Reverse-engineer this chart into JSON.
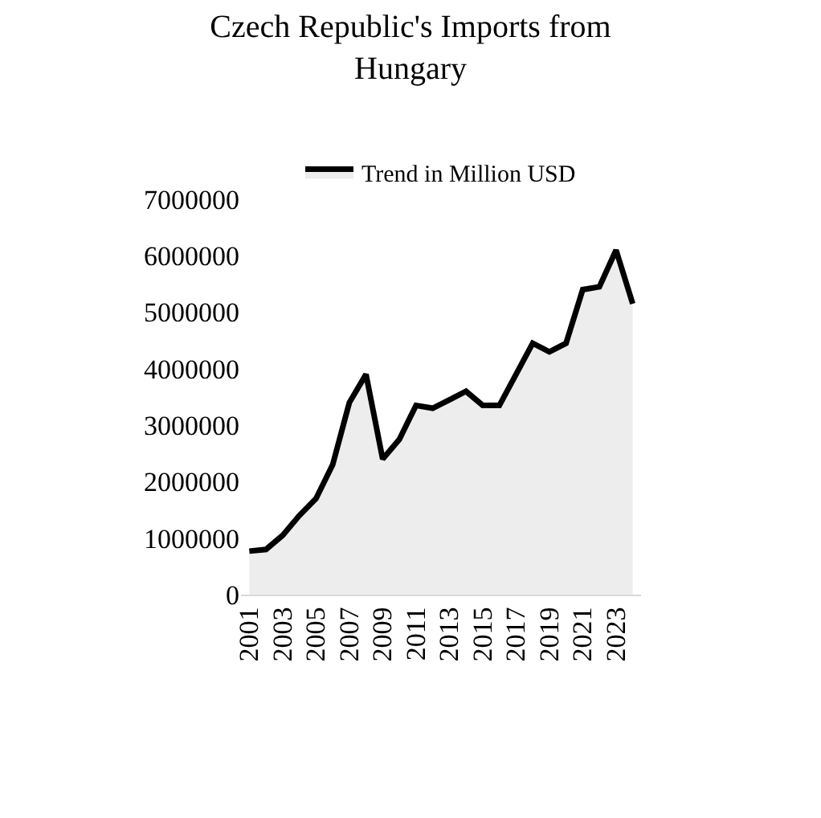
{
  "chart_data": {
    "type": "area",
    "title": "Czech Republic's Imports from Hungary",
    "categories": [
      "2001",
      null,
      "2003",
      null,
      "2005",
      null,
      "2007",
      null,
      "2009",
      null,
      "2011",
      null,
      "2013",
      null,
      "2015",
      null,
      "2017",
      null,
      "2019",
      null,
      "2021",
      null,
      "2023",
      null
    ],
    "series": [
      {
        "name": "Trend in Million USD",
        "color": "#000000",
        "values": [
          770000,
          800000,
          1050000,
          1400000,
          1700000,
          2300000,
          3400000,
          3900000,
          2400000,
          2750000,
          3350000,
          3300000,
          3450000,
          3600000,
          3350000,
          3350000,
          3900000,
          4450000,
          4300000,
          4450000,
          5400000,
          5450000,
          6100000,
          5150000
        ]
      }
    ],
    "ylim": [
      0,
      7000000
    ],
    "yticks": [
      0,
      1000000,
      2000000,
      3000000,
      4000000,
      5000000,
      6000000,
      7000000
    ],
    "legend": "top",
    "marker": "none",
    "line_style": "solid"
  }
}
